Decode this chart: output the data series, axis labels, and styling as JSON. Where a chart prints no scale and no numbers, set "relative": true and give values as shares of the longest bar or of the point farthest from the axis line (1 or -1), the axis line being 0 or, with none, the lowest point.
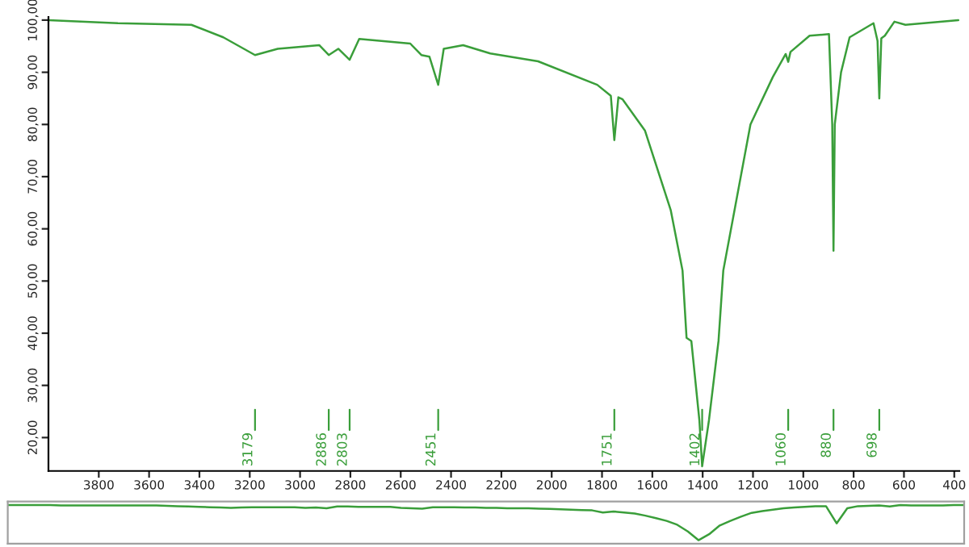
{
  "chart_data": [
    {
      "type": "line",
      "xlim": [
        4000,
        380
      ],
      "ylim": [
        13.6,
        100.6
      ],
      "xticks": [
        3800,
        3600,
        3400,
        3200,
        3000,
        2800,
        2600,
        2400,
        2200,
        2000,
        1800,
        1600,
        1400,
        1200,
        1000,
        800,
        600,
        400
      ],
      "yticks": [
        {
          "value": 100,
          "label": "100,00"
        },
        {
          "value": 90,
          "label": "90,00"
        },
        {
          "value": 80,
          "label": "80,00"
        },
        {
          "value": 70,
          "label": "70,00"
        },
        {
          "value": 60,
          "label": "60,00"
        },
        {
          "value": 50,
          "label": "50,00"
        },
        {
          "value": 40,
          "label": "40,00"
        },
        {
          "value": 30,
          "label": "30,00"
        },
        {
          "value": 20,
          "label": "20,00"
        }
      ],
      "grid": false,
      "marker": "none",
      "line_style": "solid",
      "series": [
        {
          "color": "#3a9e3a",
          "x": [
            4000,
            3724,
            3432,
            3305,
            3179,
            3089,
            2924,
            2886,
            2848,
            2803,
            2765,
            2562,
            2518,
            2486,
            2451,
            2429,
            2352,
            2244,
            2054,
            1819,
            1765,
            1751,
            1735,
            1718,
            1629,
            1527,
            1480,
            1464,
            1445,
            1413,
            1402,
            1375,
            1337,
            1318,
            1210,
            1121,
            1070,
            1060,
            1051,
            975,
            898,
            885,
            880,
            875,
            850,
            816,
            721,
            705,
            698,
            690,
            676,
            638,
            594,
            384
          ],
          "values": [
            100,
            99.4,
            99.1,
            96.7,
            93.3,
            94.5,
            95.2,
            93.3,
            94.5,
            92.4,
            96.4,
            95.5,
            93.3,
            93,
            87.6,
            94.5,
            95.2,
            93.6,
            92.1,
            87.6,
            85.5,
            77,
            85.2,
            84.8,
            78.8,
            63.6,
            52,
            39.1,
            38.5,
            23.3,
            14.5,
            23.3,
            38.5,
            52,
            80,
            89.1,
            93.5,
            92,
            93.9,
            97,
            97.3,
            80,
            55.8,
            80,
            90,
            96.7,
            99.4,
            96,
            85,
            96.5,
            97,
            99.7,
            99.1,
            100
          ]
        }
      ],
      "ref_lines": [
        {
          "axis": "x",
          "value": 3179,
          "label": "3179"
        },
        {
          "axis": "x",
          "value": 2886,
          "label": "2886"
        },
        {
          "axis": "x",
          "value": 2803,
          "label": "2803"
        },
        {
          "axis": "x",
          "value": 2451,
          "label": "2451"
        },
        {
          "axis": "x",
          "value": 1751,
          "label": "1751"
        },
        {
          "axis": "x",
          "value": 1402,
          "label": "1402"
        },
        {
          "axis": "x",
          "value": 1060,
          "label": "1060"
        },
        {
          "axis": "x",
          "value": 880,
          "label": "880"
        },
        {
          "axis": "x",
          "value": 698,
          "label": "698"
        }
      ]
    },
    {
      "type": "line",
      "relative": true,
      "tick_labels": false,
      "grid": false,
      "marker": "none",
      "line_style": "solid",
      "categories": [
        null,
        null,
        null,
        null,
        null,
        null,
        null,
        null,
        null,
        null,
        null,
        null,
        null,
        null,
        null,
        null,
        null,
        null,
        null,
        null,
        null,
        null,
        null,
        null,
        null,
        null,
        null,
        null,
        null,
        null,
        null,
        null,
        null,
        null,
        null,
        null,
        null,
        null,
        null,
        null,
        null,
        null,
        null,
        null,
        null,
        null,
        null,
        null,
        null,
        null,
        null,
        null,
        null,
        null,
        null,
        null,
        null,
        null,
        null,
        null,
        null,
        null,
        null,
        null,
        null,
        null,
        null,
        null,
        null,
        null,
        null,
        null,
        null,
        null,
        null,
        null,
        null,
        null,
        null,
        null,
        null,
        null,
        null,
        null,
        null,
        null,
        null,
        null,
        null,
        null,
        null
      ],
      "series": [
        {
          "color": "#3a9e3a",
          "values": [
            1,
            1,
            1,
            1,
            1,
            0.99,
            0.99,
            0.99,
            0.99,
            0.99,
            0.99,
            0.99,
            0.99,
            0.99,
            0.99,
            0.98,
            0.97,
            0.96,
            0.95,
            0.94,
            0.93,
            0.92,
            0.93,
            0.94,
            0.94,
            0.94,
            0.94,
            0.94,
            0.92,
            0.93,
            0.91,
            0.96,
            0.96,
            0.95,
            0.95,
            0.95,
            0.95,
            0.92,
            0.91,
            0.9,
            0.94,
            0.94,
            0.94,
            0.93,
            0.93,
            0.92,
            0.92,
            0.91,
            0.91,
            0.91,
            0.9,
            0.89,
            0.88,
            0.87,
            0.86,
            0.85,
            0.79,
            0.82,
            0.79,
            0.76,
            0.7,
            0.63,
            0.55,
            0.44,
            0.25,
            0,
            0.17,
            0.42,
            0.55,
            0.67,
            0.78,
            0.83,
            0.87,
            0.91,
            0.93,
            0.95,
            0.97,
            0.97,
            0.48,
            0.91,
            0.97,
            0.98,
            0.99,
            0.96,
            1,
            0.99,
            0.99,
            0.99,
            0.99,
            1,
            1
          ]
        }
      ]
    }
  ]
}
